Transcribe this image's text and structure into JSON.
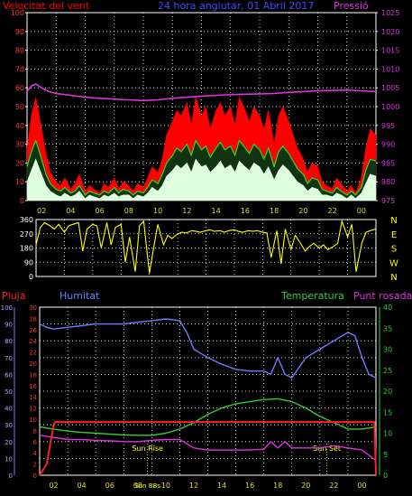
{
  "colors": {
    "background": "#000000",
    "grid": "#ffffff",
    "frame": "#ffffff",
    "wind_gust": "#ff0000",
    "wind_avg": "#22dd22",
    "wind_min": "#ddffdd",
    "pressure": "#dd33dd",
    "direction": "#ffff00",
    "rain": "#ff2222",
    "humidity": "#7777ff",
    "temperature": "#33cc33",
    "dewpoint": "#dd33dd",
    "sun_line": "#ffff00"
  },
  "chart_data": [
    {
      "type": "line",
      "id": "wind-pressure",
      "title": "24 hora anglutar, 01 Abril 2017",
      "ylabel": "Velocitat del vent",
      "y2label": "Pressió",
      "x_ticks": [
        "02",
        "04",
        "06",
        "08",
        "10",
        "12",
        "14",
        "16",
        "18",
        "20",
        "22",
        "00"
      ],
      "xlim": [
        0,
        24
      ],
      "ylim": [
        0,
        100
      ],
      "y_ticks": [
        "0",
        "10",
        "20",
        "30",
        "40",
        "50",
        "60",
        "70",
        "80",
        "90",
        "100"
      ],
      "y2lim": [
        975,
        1025
      ],
      "y2_ticks": [
        "975",
        "980",
        "985",
        "990",
        "995",
        "1000",
        "1005",
        "1010",
        "1015",
        "1020",
        "1025"
      ],
      "grid": true,
      "series": [
        {
          "key": "gust",
          "x": [
            0.0,
            0.3,
            0.6,
            1.0,
            1.3,
            1.6,
            2.0,
            2.3,
            2.6,
            3.0,
            3.3,
            3.6,
            4.0,
            4.3,
            4.6,
            5.0,
            5.3,
            5.6,
            6.0,
            6.3,
            6.6,
            7.0,
            7.3,
            7.6,
            8.0,
            8.3,
            8.6,
            9.0,
            9.3,
            9.6,
            10.0,
            10.3,
            10.6,
            11.0,
            11.3,
            11.6,
            12.0,
            12.3,
            12.6,
            13.0,
            13.3,
            13.6,
            14.0,
            14.3,
            14.6,
            15.0,
            15.3,
            15.6,
            16.0,
            16.3,
            16.6,
            17.0,
            17.3,
            17.6,
            18.0,
            18.3,
            18.6,
            19.0,
            19.3,
            19.6,
            20.0,
            20.3,
            20.6,
            21.0,
            21.3,
            21.6,
            22.0,
            22.3,
            22.6,
            23.0,
            23.3,
            23.6,
            24.0
          ],
          "y": [
            28,
            45,
            55,
            38,
            25,
            15,
            10,
            8,
            12,
            6,
            9,
            14,
            5,
            8,
            6,
            4,
            9,
            7,
            12,
            6,
            10,
            8,
            5,
            9,
            7,
            12,
            18,
            15,
            22,
            35,
            42,
            48,
            45,
            52,
            40,
            55,
            45,
            50,
            38,
            48,
            52,
            45,
            50,
            40,
            55,
            48,
            42,
            50,
            45,
            38,
            48,
            30,
            45,
            50,
            42,
            35,
            28,
            22,
            15,
            20,
            18,
            10,
            8,
            6,
            12,
            9,
            5,
            8,
            4,
            12,
            28,
            38,
            35
          ]
        },
        {
          "key": "avg",
          "x": [
            0.0,
            0.3,
            0.6,
            1.0,
            1.3,
            1.6,
            2.0,
            2.3,
            2.6,
            3.0,
            3.3,
            3.6,
            4.0,
            4.3,
            4.6,
            5.0,
            5.3,
            5.6,
            6.0,
            6.3,
            6.6,
            7.0,
            7.3,
            7.6,
            8.0,
            8.3,
            8.6,
            9.0,
            9.3,
            9.6,
            10.0,
            10.3,
            10.6,
            11.0,
            11.3,
            11.6,
            12.0,
            12.3,
            12.6,
            13.0,
            13.3,
            13.6,
            14.0,
            14.3,
            14.6,
            15.0,
            15.3,
            15.6,
            16.0,
            16.3,
            16.6,
            17.0,
            17.3,
            17.6,
            18.0,
            18.3,
            18.6,
            19.0,
            19.3,
            19.6,
            20.0,
            20.3,
            20.6,
            21.0,
            21.3,
            21.6,
            22.0,
            22.3,
            22.6,
            23.0,
            23.3,
            23.6,
            24.0
          ],
          "y": [
            18,
            26,
            32,
            22,
            14,
            9,
            6,
            5,
            7,
            4,
            5,
            8,
            3,
            5,
            4,
            3,
            5,
            4,
            7,
            4,
            6,
            5,
            3,
            5,
            4,
            7,
            11,
            9,
            14,
            20,
            24,
            28,
            26,
            30,
            24,
            32,
            27,
            29,
            23,
            28,
            31,
            27,
            29,
            24,
            32,
            28,
            25,
            30,
            27,
            22,
            28,
            18,
            26,
            29,
            25,
            21,
            17,
            14,
            9,
            12,
            11,
            6,
            5,
            4,
            7,
            5,
            3,
            5,
            3,
            7,
            16,
            22,
            21
          ]
        },
        {
          "key": "min",
          "x": [
            0.0,
            0.3,
            0.6,
            1.0,
            1.3,
            1.6,
            2.0,
            2.3,
            2.6,
            3.0,
            3.3,
            3.6,
            4.0,
            4.3,
            4.6,
            5.0,
            5.3,
            5.6,
            6.0,
            6.3,
            6.6,
            7.0,
            7.3,
            7.6,
            8.0,
            8.3,
            8.6,
            9.0,
            9.3,
            9.6,
            10.0,
            10.3,
            10.6,
            11.0,
            11.3,
            11.6,
            12.0,
            12.3,
            12.6,
            13.0,
            13.3,
            13.6,
            14.0,
            14.3,
            14.6,
            15.0,
            15.3,
            15.6,
            16.0,
            16.3,
            16.6,
            17.0,
            17.3,
            17.6,
            18.0,
            18.3,
            18.6,
            19.0,
            19.3,
            19.6,
            20.0,
            20.3,
            20.6,
            21.0,
            21.3,
            21.6,
            22.0,
            22.3,
            22.6,
            23.0,
            23.3,
            23.6,
            24.0
          ],
          "y": [
            10,
            16,
            22,
            14,
            8,
            5,
            3,
            2,
            4,
            2,
            3,
            5,
            1,
            3,
            2,
            1,
            3,
            2,
            4,
            2,
            3,
            3,
            1,
            3,
            2,
            4,
            7,
            5,
            8,
            13,
            16,
            19,
            17,
            20,
            15,
            22,
            18,
            19,
            15,
            18,
            21,
            17,
            19,
            15,
            21,
            18,
            16,
            20,
            18,
            14,
            18,
            11,
            16,
            19,
            16,
            13,
            10,
            8,
            5,
            7,
            6,
            3,
            3,
            2,
            4,
            3,
            1,
            3,
            1,
            4,
            9,
            14,
            13
          ]
        },
        {
          "key": "pressure",
          "axis": "y2",
          "x": [
            0.0,
            0.3,
            0.6,
            1.0,
            1.5,
            2.0,
            3.0,
            4.0,
            5.0,
            6.0,
            7.0,
            8.0,
            9.0,
            10.0,
            11.0,
            12.0,
            13.0,
            14.0,
            15.0,
            16.0,
            17.0,
            18.0,
            19.0,
            20.0,
            21.0,
            22.0,
            23.0,
            24.0
          ],
          "y": [
            1004,
            1005.5,
            1006,
            1005,
            1004,
            1003.5,
            1003,
            1002.5,
            1002.2,
            1002,
            1001.8,
            1001.6,
            1001.8,
            1002.2,
            1002.5,
            1002.8,
            1003,
            1003.2,
            1003.3,
            1003.4,
            1003.5,
            1003.8,
            1004,
            1004.2,
            1004.3,
            1004.4,
            1004.2,
            1004
          ]
        }
      ]
    },
    {
      "type": "scatter",
      "id": "wind-direction",
      "x_ticks": [],
      "xlim": [
        0,
        24
      ],
      "ylim": [
        0,
        360
      ],
      "y_ticks": [
        "0",
        "90",
        "180",
        "270",
        "360"
      ],
      "y2_ticks": [
        "N",
        "W",
        "S",
        "E",
        "N"
      ],
      "grid": true,
      "series": [
        {
          "key": "direction",
          "x": [
            0.0,
            0.3,
            0.6,
            1.0,
            1.3,
            1.6,
            2.0,
            2.3,
            2.6,
            3.0,
            3.3,
            3.6,
            4.0,
            4.3,
            4.6,
            5.0,
            5.3,
            5.6,
            6.0,
            6.3,
            6.6,
            7.0,
            7.3,
            7.6,
            8.0,
            8.3,
            8.6,
            9.0,
            9.3,
            9.6,
            10.0,
            10.3,
            10.6,
            11.0,
            11.3,
            11.6,
            12.0,
            12.3,
            12.6,
            13.0,
            13.3,
            13.6,
            14.0,
            14.3,
            14.6,
            15.0,
            15.3,
            15.6,
            16.0,
            16.3,
            16.6,
            17.0,
            17.3,
            17.6,
            18.0,
            18.3,
            18.6,
            19.0,
            19.3,
            19.6,
            20.0,
            20.3,
            20.6,
            21.0,
            21.3,
            21.6,
            22.0,
            22.3,
            22.6,
            23.0,
            23.3,
            23.6,
            24.0
          ],
          "y": [
            200,
            310,
            340,
            320,
            300,
            330,
            280,
            320,
            330,
            340,
            160,
            300,
            330,
            320,
            180,
            340,
            200,
            310,
            330,
            90,
            250,
            30,
            320,
            350,
            20,
            180,
            330,
            200,
            260,
            240,
            270,
            280,
            275,
            290,
            285,
            280,
            290,
            295,
            285,
            290,
            280,
            290,
            295,
            285,
            280,
            290,
            285,
            290,
            280,
            275,
            120,
            290,
            80,
            300,
            170,
            260,
            220,
            160,
            190,
            210,
            180,
            200,
            170,
            190,
            210,
            350,
            250,
            330,
            30,
            210,
            280,
            290,
            300
          ]
        }
      ]
    },
    {
      "type": "line",
      "id": "humidity-temperature",
      "x_ticks": [
        "02",
        "04",
        "06",
        "08",
        "10",
        "12",
        "14",
        "16",
        "18",
        "20",
        "22",
        "00"
      ],
      "xlim": [
        0,
        24
      ],
      "ylabels": [
        "Pluja",
        "Humitat",
        "Temperatura",
        "Punt rosada"
      ],
      "ylim": [
        0,
        100
      ],
      "y_ticks": [
        "0",
        "10",
        "20",
        "30",
        "40",
        "50",
        "60",
        "70",
        "80",
        "90",
        "100"
      ],
      "rain_lim": [
        0,
        30
      ],
      "rain_ticks": [
        "0",
        "2",
        "4",
        "6",
        "8",
        "10",
        "12",
        "14",
        "16",
        "18",
        "20",
        "22",
        "24",
        "26",
        "28",
        "30"
      ],
      "y2lim": [
        0,
        40
      ],
      "y2_ticks": [
        "0",
        "5",
        "10",
        "15",
        "20",
        "25",
        "30",
        "35",
        "40"
      ],
      "grid": true,
      "annotations": [
        {
          "label": "Sun Rise",
          "x": 7.7
        },
        {
          "label": "Sun Set",
          "x": 20.5
        },
        {
          "label": "Sun BBs",
          "x": 7.7
        }
      ],
      "series": [
        {
          "key": "rain",
          "axis": "rain",
          "x": [
            0.0,
            0.5,
            1.0,
            1.1,
            23.9,
            24.0
          ],
          "y": [
            0,
            2,
            9,
            9.5,
            9.5,
            0
          ]
        },
        {
          "key": "humidity",
          "x": [
            0.0,
            0.5,
            1.0,
            2.0,
            3.0,
            4.0,
            5.0,
            6.0,
            7.0,
            8.0,
            9.0,
            10.0,
            10.5,
            11.0,
            12.0,
            13.0,
            14.0,
            15.0,
            16.0,
            16.5,
            17.0,
            17.5,
            18.0,
            19.0,
            20.0,
            21.0,
            22.0,
            22.5,
            23.0,
            23.5,
            24.0
          ],
          "y": [
            90,
            88,
            87,
            88,
            89,
            90,
            90,
            90,
            91,
            92,
            93,
            92,
            85,
            75,
            70,
            66,
            63,
            62,
            62,
            60,
            70,
            60,
            58,
            70,
            75,
            80,
            85,
            83,
            70,
            60,
            58
          ]
        },
        {
          "key": "temperature",
          "axis": "y2",
          "x": [
            0.0,
            1.0,
            2.0,
            3.0,
            4.0,
            5.0,
            6.0,
            7.0,
            8.0,
            9.0,
            10.0,
            11.0,
            12.0,
            13.0,
            14.0,
            15.0,
            16.0,
            17.0,
            18.0,
            19.0,
            20.0,
            21.0,
            22.0,
            23.0,
            24.0
          ],
          "y": [
            11.5,
            11,
            10.5,
            10.2,
            10,
            9.8,
            9.6,
            9.5,
            9.5,
            10,
            11,
            12.5,
            14.5,
            16,
            17,
            17.5,
            18,
            18.2,
            17.5,
            16,
            14,
            12.5,
            11,
            11,
            11.5
          ]
        },
        {
          "key": "dewpoint",
          "axis": "y2",
          "x": [
            0.0,
            1.0,
            2.0,
            3.0,
            4.0,
            5.0,
            6.0,
            7.0,
            8.0,
            9.0,
            10.0,
            11.0,
            12.0,
            13.0,
            14.0,
            15.0,
            16.0,
            16.5,
            17.0,
            17.5,
            18.0,
            19.0,
            20.0,
            21.0,
            22.0,
            23.0,
            24.0
          ],
          "y": [
            9.5,
            9,
            8.5,
            8.5,
            8.3,
            8.2,
            8,
            8,
            8.3,
            8.5,
            8.5,
            6.5,
            6,
            6,
            6,
            6,
            6.2,
            8,
            6.5,
            8,
            6.5,
            6.5,
            6.5,
            7,
            6.5,
            6,
            3.5
          ]
        }
      ]
    }
  ]
}
